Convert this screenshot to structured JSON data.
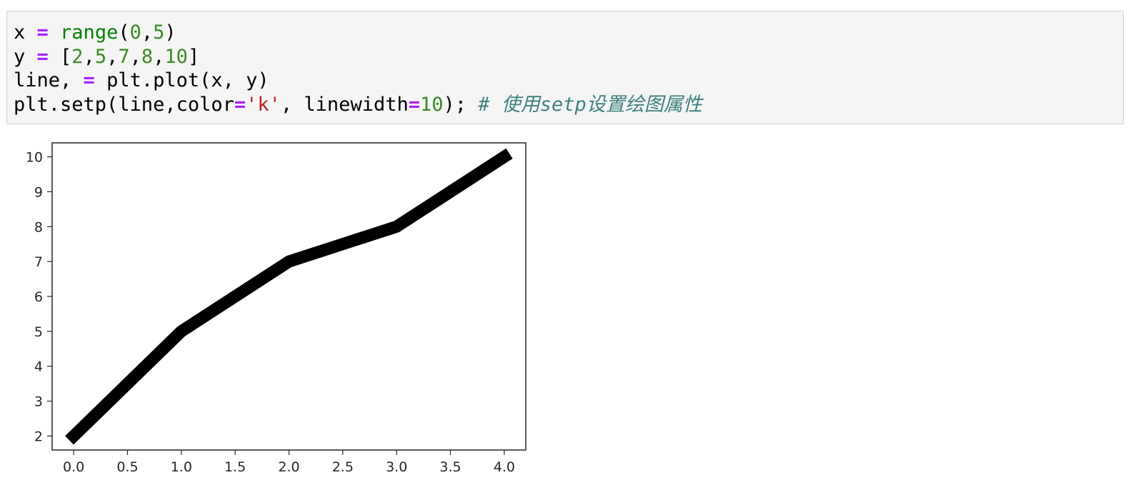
{
  "code_cell": {
    "lines": [
      [
        {
          "text": "x ",
          "cls": ""
        },
        {
          "text": "=",
          "cls": "tok-op"
        },
        {
          "text": " ",
          "cls": ""
        },
        {
          "text": "range",
          "cls": "tok-builtin"
        },
        {
          "text": "(",
          "cls": ""
        },
        {
          "text": "0",
          "cls": "tok-num"
        },
        {
          "text": ",",
          "cls": ""
        },
        {
          "text": "5",
          "cls": "tok-num"
        },
        {
          "text": ")",
          "cls": ""
        }
      ],
      [
        {
          "text": "y ",
          "cls": ""
        },
        {
          "text": "=",
          "cls": "tok-op"
        },
        {
          "text": " [",
          "cls": ""
        },
        {
          "text": "2",
          "cls": "tok-num"
        },
        {
          "text": ",",
          "cls": ""
        },
        {
          "text": "5",
          "cls": "tok-num"
        },
        {
          "text": ",",
          "cls": ""
        },
        {
          "text": "7",
          "cls": "tok-num"
        },
        {
          "text": ",",
          "cls": ""
        },
        {
          "text": "8",
          "cls": "tok-num"
        },
        {
          "text": ",",
          "cls": ""
        },
        {
          "text": "10",
          "cls": "tok-num"
        },
        {
          "text": "]",
          "cls": ""
        }
      ],
      [
        {
          "text": "line, ",
          "cls": ""
        },
        {
          "text": "=",
          "cls": "tok-op"
        },
        {
          "text": " plt.plot(x, y)",
          "cls": ""
        }
      ],
      [
        {
          "text": "plt.setp(line,color",
          "cls": ""
        },
        {
          "text": "=",
          "cls": "tok-op"
        },
        {
          "text": "'k'",
          "cls": "tok-str"
        },
        {
          "text": ", linewidth",
          "cls": ""
        },
        {
          "text": "=",
          "cls": "tok-op"
        },
        {
          "text": "10",
          "cls": "tok-num"
        },
        {
          "text": "); ",
          "cls": ""
        },
        {
          "text": "# 使用setp设置绘图属性",
          "cls": "tok-comment"
        }
      ]
    ]
  },
  "chart_data": {
    "type": "line",
    "x": [
      0,
      1,
      2,
      3,
      4
    ],
    "series": [
      {
        "values": [
          2,
          5,
          7,
          8,
          10
        ],
        "color": "#000000"
      }
    ],
    "xlim": [
      -0.2,
      4.2
    ],
    "ylim": [
      1.6,
      10.4
    ],
    "xticks": [
      "0.0",
      "0.5",
      "1.0",
      "1.5",
      "2.0",
      "2.5",
      "3.0",
      "3.5",
      "4.0"
    ],
    "yticks": [
      "2",
      "3",
      "4",
      "5",
      "6",
      "7",
      "8",
      "9",
      "10"
    ],
    "grid": false,
    "title": "",
    "xlabel": "",
    "ylabel": ""
  }
}
